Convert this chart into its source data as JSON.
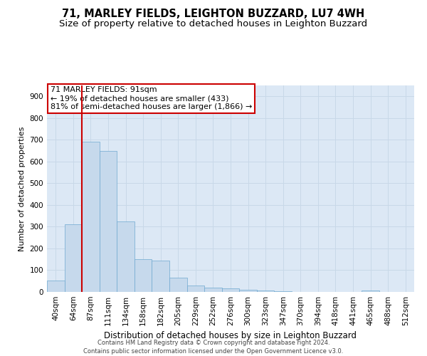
{
  "title": "71, MARLEY FIELDS, LEIGHTON BUZZARD, LU7 4WH",
  "subtitle": "Size of property relative to detached houses in Leighton Buzzard",
  "xlabel": "Distribution of detached houses by size in Leighton Buzzard",
  "ylabel": "Number of detached properties",
  "bin_labels": [
    "40sqm",
    "64sqm",
    "87sqm",
    "111sqm",
    "134sqm",
    "158sqm",
    "182sqm",
    "205sqm",
    "229sqm",
    "252sqm",
    "276sqm",
    "300sqm",
    "323sqm",
    "347sqm",
    "370sqm",
    "394sqm",
    "418sqm",
    "441sqm",
    "465sqm",
    "488sqm",
    "512sqm"
  ],
  "bar_values": [
    52,
    310,
    690,
    650,
    325,
    150,
    145,
    65,
    30,
    20,
    15,
    10,
    5,
    3,
    0,
    0,
    0,
    0,
    8,
    0,
    0
  ],
  "bar_color": "#c6d9ec",
  "bar_edge_color": "#6fa8d0",
  "vline_color": "#cc0000",
  "vline_x": 1.5,
  "annotation_text": "71 MARLEY FIELDS: 91sqm\n← 19% of detached houses are smaller (433)\n81% of semi-detached houses are larger (1,866) →",
  "annotation_box_facecolor": "#ffffff",
  "annotation_box_edgecolor": "#cc0000",
  "ylim": [
    0,
    950
  ],
  "yticks": [
    0,
    100,
    200,
    300,
    400,
    500,
    600,
    700,
    800,
    900
  ],
  "grid_color": "#c8d8e8",
  "background_color": "#dce8f5",
  "footer_text": "Contains HM Land Registry data © Crown copyright and database right 2024.\nContains public sector information licensed under the Open Government Licence v3.0.",
  "title_fontsize": 10.5,
  "subtitle_fontsize": 9.5,
  "xlabel_fontsize": 8.5,
  "ylabel_fontsize": 8,
  "tick_fontsize": 7.5,
  "annotation_fontsize": 8,
  "footer_fontsize": 6
}
